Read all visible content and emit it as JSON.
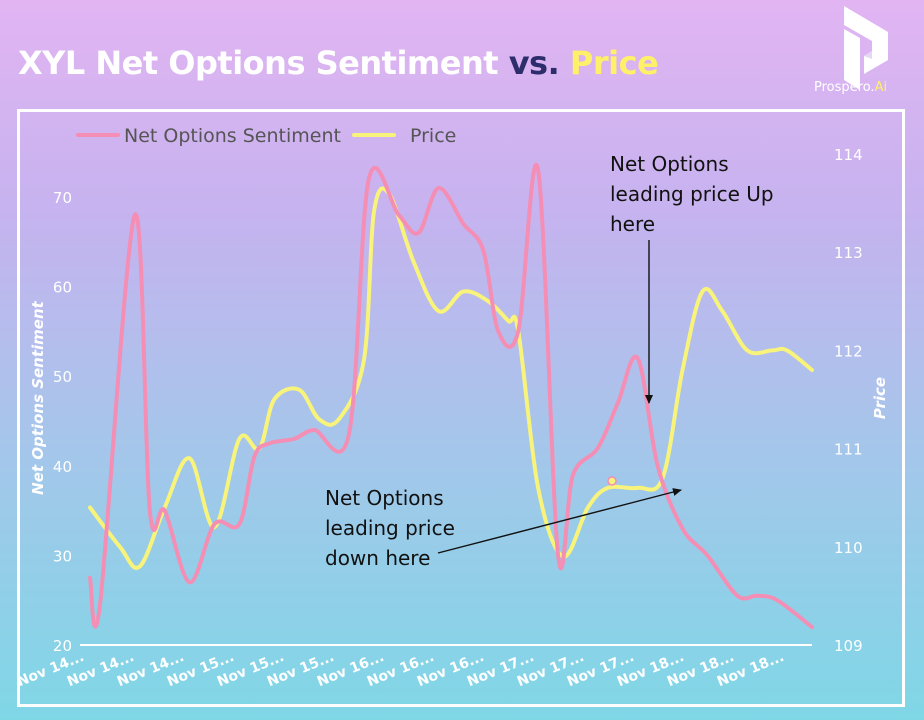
{
  "header": {
    "title_main": "XYL Net Options Sentiment",
    "title_vs": "vs.",
    "title_price": "Price"
  },
  "logo": {
    "text": "Prospero.",
    "text_ai": "Ai"
  },
  "annotations": {
    "up_lines": [
      "Net Options",
      "leading price Up",
      "here"
    ],
    "down_lines": [
      "Net Options",
      "leading price",
      "down here"
    ]
  },
  "colors": {
    "sentiment": "#f48eb4",
    "price": "#f8f37a",
    "axis_text": "#ffffff",
    "annotation": "#111111",
    "logo_accent": "#fff06a"
  },
  "chart_data": {
    "type": "line",
    "title": "XYL Net Options Sentiment vs. Price",
    "xlabel": "",
    "ylabel": "Net Options Sentiment",
    "ylabel_right": "Price",
    "ylim": [
      20,
      75
    ],
    "ylim_right": [
      109,
      114
    ],
    "yticks": [
      20,
      30,
      40,
      50,
      60,
      70
    ],
    "yticks_right": [
      109,
      110,
      111,
      112,
      113,
      114
    ],
    "x_labels": [
      "Nov 14...",
      "Nov 14...",
      "Nov 14...",
      "Nov 15...",
      "Nov 15...",
      "Nov 15...",
      "Nov 16...",
      "Nov 16...",
      "Nov 16...",
      "Nov 17...",
      "Nov 17...",
      "Nov 17...",
      "Nov 18...",
      "Nov 18...",
      "Nov 18..."
    ],
    "legend": "top-left",
    "grid": false,
    "series": [
      {
        "name": "Net Options Sentiment",
        "axis": "left",
        "x": [
          0,
          0.2,
          0.9,
          1.2,
          1.5,
          2.0,
          2.5,
          3.0,
          3.3,
          3.6,
          4.1,
          4.5,
          5.2,
          5.6,
          6.2,
          6.6,
          7.0,
          7.5,
          7.9,
          8.2,
          8.6,
          9.0,
          9.4,
          9.7,
          10.2,
          10.6,
          11.0,
          11.4,
          11.9,
          12.4,
          13.0,
          13.4,
          13.8,
          14.5
        ],
        "values": [
          27.5,
          24.5,
          68.0,
          35.0,
          35.0,
          27.0,
          33.5,
          33.5,
          41.0,
          42.5,
          43.0,
          44.0,
          43.5,
          72.0,
          68.0,
          66.0,
          71.0,
          67.0,
          64.0,
          55.0,
          55.0,
          73.0,
          30.0,
          39.0,
          42.0,
          47.0,
          52.0,
          40.0,
          33.0,
          30.0,
          25.5,
          25.5,
          25.0,
          22.0
        ]
      },
      {
        "name": "Price",
        "axis": "right",
        "x": [
          0,
          0.6,
          1.0,
          1.5,
          2.0,
          2.5,
          3.0,
          3.4,
          3.7,
          4.2,
          4.6,
          5.0,
          5.5,
          5.7,
          6.0,
          6.5,
          7.0,
          7.5,
          8.0,
          8.4,
          8.6,
          9.0,
          9.5,
          10.0,
          10.4,
          11.0,
          11.5,
          11.9,
          12.3,
          12.7,
          13.2,
          13.7,
          14.0,
          14.5
        ],
        "values": [
          110.4,
          110.0,
          109.8,
          110.4,
          110.9,
          110.2,
          111.1,
          111.0,
          111.5,
          111.6,
          111.3,
          111.3,
          111.9,
          113.4,
          113.6,
          112.9,
          112.4,
          112.6,
          112.5,
          112.3,
          112.2,
          110.6,
          109.9,
          110.4,
          110.6,
          110.6,
          110.7,
          111.8,
          112.6,
          112.4,
          112.0,
          112.0,
          112.0,
          111.8
        ]
      }
    ]
  }
}
